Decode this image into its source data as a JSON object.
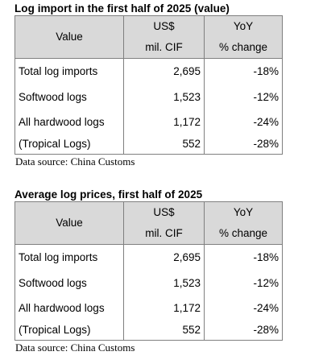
{
  "tables": [
    {
      "title": "Log import in the first half of 2025 (value)",
      "headers": {
        "value": "Value",
        "col2_line1": "US$",
        "col2_line2": "mil. CIF",
        "col3_line1": "YoY",
        "col3_line2": "% change"
      },
      "rows": [
        {
          "label": "Total log imports",
          "value": "2,695",
          "yoy": "-18%"
        },
        {
          "label": "Softwood logs",
          "value": "1,523",
          "yoy": "-12%"
        },
        {
          "label": "All hardwood logs",
          "value": "1,172",
          "yoy": "-24%"
        },
        {
          "label": "(Tropical Logs)",
          "value": "552",
          "yoy": "-28%"
        }
      ],
      "source": "Data source: China Customs"
    },
    {
      "title": "Average log prices, first half of 2025",
      "headers": {
        "value": "Value",
        "col2_line1": "US$",
        "col2_line2": "mil. CIF",
        "col3_line1": "YoY",
        "col3_line2": "% change"
      },
      "rows": [
        {
          "label": "Total log imports",
          "value": "2,695",
          "yoy": "-18%"
        },
        {
          "label": "Softwood logs",
          "value": "1,523",
          "yoy": "-12%"
        },
        {
          "label": "All hardwood logs",
          "value": "1,172",
          "yoy": "-24%"
        },
        {
          "label": "(Tropical Logs)",
          "value": "552",
          "yoy": "-28%"
        }
      ],
      "source": "Data source: China Customs"
    }
  ]
}
